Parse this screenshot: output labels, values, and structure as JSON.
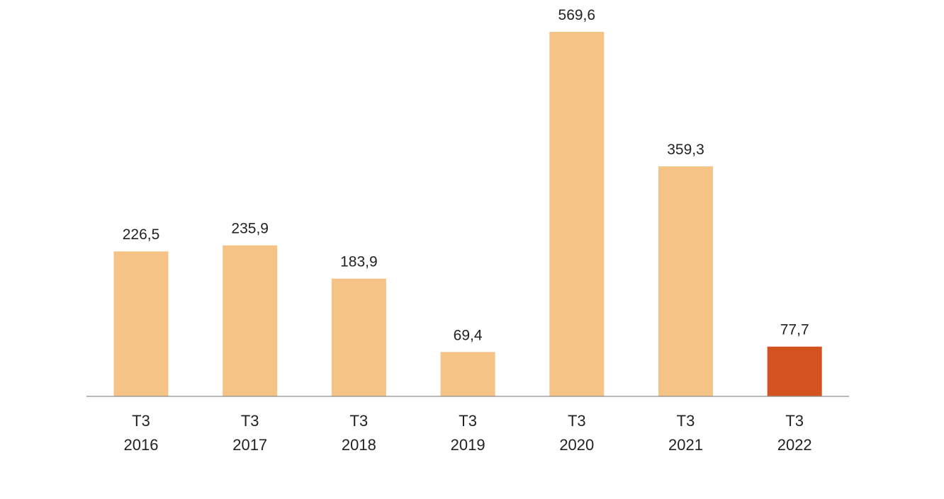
{
  "chart_data": {
    "type": "bar",
    "categories": [
      [
        "T3",
        "2016"
      ],
      [
        "T3",
        "2017"
      ],
      [
        "T3",
        "2018"
      ],
      [
        "T3",
        "2019"
      ],
      [
        "T3",
        "2020"
      ],
      [
        "T3",
        "2021"
      ],
      [
        "T3",
        "2022"
      ]
    ],
    "values": [
      226.5,
      235.9,
      183.9,
      69.4,
      569.6,
      359.3,
      77.7
    ],
    "value_labels": [
      "226,5",
      "235,9",
      "183,9",
      "69,4",
      "569,6",
      "359,3",
      "77,7"
    ],
    "ylim": [
      0,
      569.6
    ],
    "grid": false,
    "legend": "none",
    "colors": {
      "bar": "#f4c385",
      "highlight": "#d45120",
      "axis": "#8c8c8c"
    },
    "highlight_index": 6
  }
}
